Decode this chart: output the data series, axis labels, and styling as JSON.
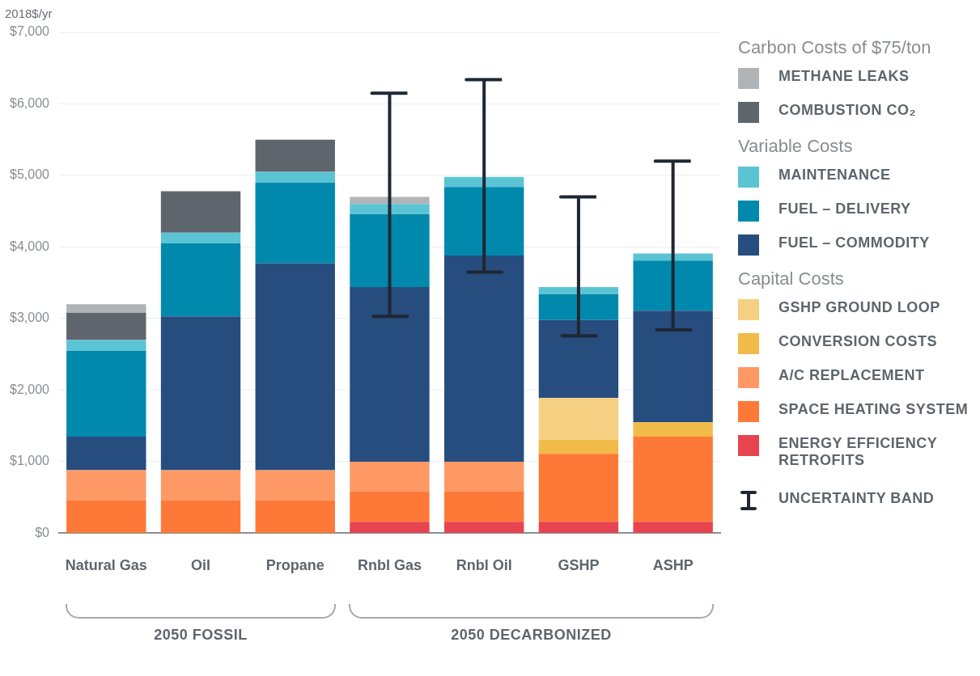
{
  "chart_data": {
    "type": "bar",
    "stacked": true,
    "ylabel": "2018$/yr",
    "categories": [
      "Natural Gas",
      "Oil",
      "Propane",
      "Rnbl Gas",
      "Rnbl Oil",
      "GSHP",
      "ASHP"
    ],
    "series": [
      {
        "name": "ENERGY EFFICIENCY RETROFITS",
        "color": "#e6444f",
        "values": [
          null,
          null,
          null,
          160,
          160,
          160,
          160
        ]
      },
      {
        "name": "SPACE HEATING SYSTEM",
        "color": "#fe7838",
        "values": [
          460,
          460,
          460,
          420,
          420,
          950,
          1190
        ]
      },
      {
        "name": "A/C REPLACEMENT",
        "color": "#fe9966",
        "values": [
          420,
          420,
          420,
          420,
          420,
          null,
          null
        ]
      },
      {
        "name": "CONVERSION COSTS",
        "color": "#f0bb48",
        "values": [
          null,
          null,
          null,
          null,
          null,
          200,
          200
        ]
      },
      {
        "name": "GSHP GROUND LOOP",
        "color": "#f5d083",
        "values": [
          null,
          null,
          null,
          null,
          null,
          580,
          null
        ]
      },
      {
        "name": "FUEL – COMMODITY",
        "color": "#264d7e",
        "values": [
          470,
          2150,
          2890,
          2440,
          2880,
          1090,
          1560
        ]
      },
      {
        "name": "FUEL – DELIVERY",
        "color": "#0089ad",
        "values": [
          1200,
          1020,
          1130,
          1020,
          960,
          360,
          700
        ]
      },
      {
        "name": "MAINTENANCE",
        "color": "#5bc4d4",
        "values": [
          150,
          150,
          150,
          140,
          140,
          100,
          100
        ],
        "errors": [
          null,
          null,
          null,
          null,
          [
            3650,
            6340
          ],
          [
            2760,
            4700
          ],
          [
            2840,
            5200
          ]
        ]
      },
      {
        "name": "COMBUSTION CO₂",
        "color": "#5f656d",
        "values": [
          380,
          580,
          450,
          null,
          null,
          null,
          null
        ]
      },
      {
        "name": "METHANE LEAKS",
        "color": "#b1b4b6",
        "values": [
          120,
          null,
          null,
          100,
          null,
          null,
          null
        ],
        "errors": [
          null,
          null,
          null,
          [
            3030,
            6150
          ],
          null,
          null,
          null
        ]
      }
    ],
    "ylim": [
      0,
      7000
    ],
    "yticks": [
      {
        "value": 0,
        "label": "$0"
      },
      {
        "value": 1000,
        "label": "$1,000"
      },
      {
        "value": 2000,
        "label": "$2,000"
      },
      {
        "value": 3000,
        "label": "$3,000"
      },
      {
        "value": 4000,
        "label": "$4,000"
      },
      {
        "value": 5000,
        "label": "$5,000"
      },
      {
        "value": 6000,
        "label": "$6,000"
      },
      {
        "value": 7000,
        "label": "$7,000"
      }
    ],
    "grid": "y",
    "legend": "right",
    "annotations": [
      "Carbon Costs of $75/ton",
      "Variable Costs",
      "Capital Costs",
      "UNCERTAINTY BAND",
      "2050 FOSSIL",
      "2050 DECARBONIZED"
    ]
  }
}
